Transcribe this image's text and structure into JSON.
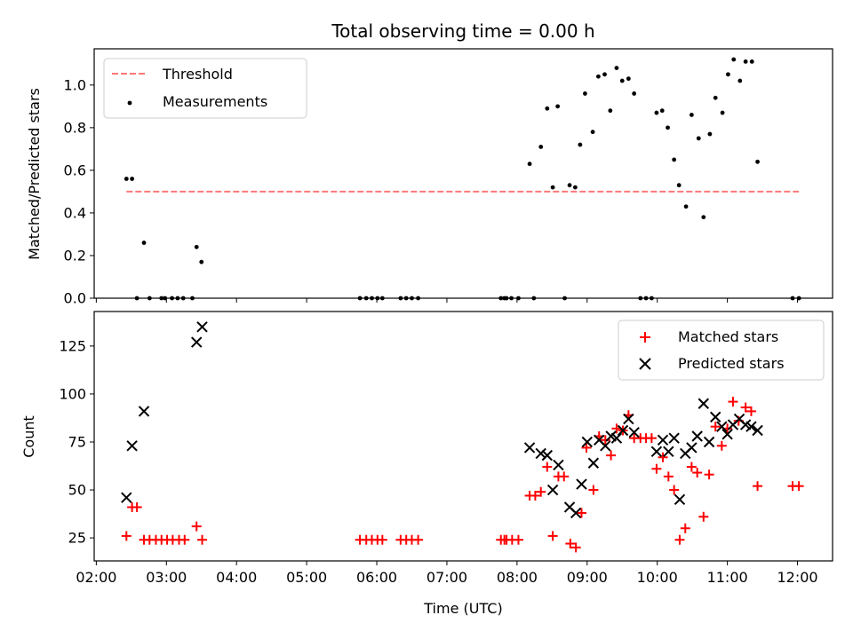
{
  "figure": {
    "title": "Total observing time = 0.00 h",
    "xlabel": "Time (UTC)",
    "x_ticks": [
      "02:00",
      "03:00",
      "04:00",
      "05:00",
      "06:00",
      "07:00",
      "08:00",
      "09:00",
      "10:00",
      "11:00",
      "12:00"
    ]
  },
  "chart_data": [
    {
      "type": "scatter",
      "title": "Total observing time = 0.00 h",
      "xlabel": "",
      "ylabel": "Matched/Predicted stars",
      "x_unit": "hours UTC",
      "xlim": [
        1.97,
        12.5
      ],
      "ylim": [
        0.0,
        1.17
      ],
      "y_ticks": [
        "0.0",
        "0.2",
        "0.4",
        "0.6",
        "0.8",
        "1.0"
      ],
      "legend_position": "upper-left",
      "threshold": {
        "name": "Threshold",
        "value": 0.5,
        "x_range": [
          2.43,
          12.02
        ],
        "color": "#ff7777",
        "style": "dashed"
      },
      "series": [
        {
          "name": "Measurements",
          "marker": "dot",
          "color": "#000000",
          "points": [
            [
              2.43,
              0.56
            ],
            [
              2.51,
              0.56
            ],
            [
              2.58,
              0.0
            ],
            [
              2.68,
              0.26
            ],
            [
              2.76,
              0.0
            ],
            [
              2.93,
              0.0
            ],
            [
              2.98,
              0.0
            ],
            [
              3.08,
              0.0
            ],
            [
              3.16,
              0.0
            ],
            [
              3.24,
              0.0
            ],
            [
              3.37,
              0.0
            ],
            [
              3.43,
              0.24
            ],
            [
              3.5,
              0.17
            ],
            [
              5.76,
              0.0
            ],
            [
              5.85,
              0.0
            ],
            [
              5.93,
              0.0
            ],
            [
              6.01,
              0.0
            ],
            [
              6.08,
              0.0
            ],
            [
              6.34,
              0.0
            ],
            [
              6.42,
              0.0
            ],
            [
              6.5,
              0.0
            ],
            [
              6.59,
              0.0
            ],
            [
              7.77,
              0.0
            ],
            [
              7.82,
              0.0
            ],
            [
              7.85,
              0.0
            ],
            [
              7.92,
              0.0
            ],
            [
              8.02,
              0.0
            ],
            [
              8.18,
              0.63
            ],
            [
              8.24,
              0.0
            ],
            [
              8.34,
              0.71
            ],
            [
              8.43,
              0.89
            ],
            [
              8.51,
              0.52
            ],
            [
              8.58,
              0.9
            ],
            [
              8.68,
              0.0
            ],
            [
              8.75,
              0.53
            ],
            [
              8.83,
              0.52
            ],
            [
              8.9,
              0.72
            ],
            [
              8.97,
              0.96
            ],
            [
              9.08,
              0.78
            ],
            [
              9.16,
              1.04
            ],
            [
              9.25,
              1.05
            ],
            [
              9.33,
              0.88
            ],
            [
              9.42,
              1.08
            ],
            [
              9.5,
              1.02
            ],
            [
              9.59,
              1.03
            ],
            [
              9.67,
              0.96
            ],
            [
              9.76,
              0.0
            ],
            [
              9.84,
              0.0
            ],
            [
              9.92,
              0.0
            ],
            [
              9.99,
              0.87
            ],
            [
              10.07,
              0.88
            ],
            [
              10.15,
              0.8
            ],
            [
              10.24,
              0.65
            ],
            [
              10.31,
              0.53
            ],
            [
              10.41,
              0.43
            ],
            [
              10.49,
              0.86
            ],
            [
              10.59,
              0.75
            ],
            [
              10.66,
              0.38
            ],
            [
              10.75,
              0.77
            ],
            [
              10.83,
              0.94
            ],
            [
              10.93,
              0.87
            ],
            [
              11.01,
              1.05
            ],
            [
              11.09,
              1.12
            ],
            [
              11.18,
              1.02
            ],
            [
              11.26,
              1.11
            ],
            [
              11.35,
              1.11
            ],
            [
              11.43,
              0.64
            ],
            [
              11.93,
              0.0
            ],
            [
              12.02,
              0.0
            ]
          ]
        }
      ]
    },
    {
      "type": "scatter",
      "xlabel": "Time (UTC)",
      "ylabel": "Count",
      "x_unit": "hours UTC",
      "xlim": [
        1.97,
        12.5
      ],
      "ylim": [
        13,
        143
      ],
      "y_ticks": [
        "25",
        "50",
        "75",
        "100",
        "125"
      ],
      "legend_position": "upper-right",
      "series": [
        {
          "name": "Matched stars",
          "marker": "plus",
          "color": "#ff0000",
          "points": [
            [
              2.43,
              26
            ],
            [
              2.51,
              41
            ],
            [
              2.58,
              41
            ],
            [
              2.68,
              24
            ],
            [
              2.76,
              24
            ],
            [
              2.85,
              24
            ],
            [
              2.93,
              24
            ],
            [
              3.01,
              24
            ],
            [
              3.09,
              24
            ],
            [
              3.18,
              24
            ],
            [
              3.26,
              24
            ],
            [
              3.43,
              31
            ],
            [
              3.51,
              24
            ],
            [
              5.76,
              24
            ],
            [
              5.85,
              24
            ],
            [
              5.93,
              24
            ],
            [
              6.01,
              24
            ],
            [
              6.08,
              24
            ],
            [
              6.34,
              24
            ],
            [
              6.42,
              24
            ],
            [
              6.5,
              24
            ],
            [
              6.59,
              24
            ],
            [
              7.77,
              24
            ],
            [
              7.82,
              24
            ],
            [
              7.85,
              24
            ],
            [
              7.93,
              24
            ],
            [
              8.02,
              24
            ],
            [
              8.18,
              47
            ],
            [
              8.26,
              47
            ],
            [
              8.34,
              49
            ],
            [
              8.43,
              62
            ],
            [
              8.51,
              26
            ],
            [
              8.59,
              57
            ],
            [
              8.67,
              57
            ],
            [
              8.76,
              22
            ],
            [
              8.84,
              20
            ],
            [
              8.92,
              38
            ],
            [
              8.99,
              72
            ],
            [
              9.09,
              50
            ],
            [
              9.17,
              78
            ],
            [
              9.26,
              76
            ],
            [
              9.34,
              68
            ],
            [
              9.42,
              82
            ],
            [
              9.51,
              81
            ],
            [
              9.59,
              89
            ],
            [
              9.67,
              77
            ],
            [
              9.76,
              77
            ],
            [
              9.84,
              77
            ],
            [
              9.92,
              77
            ],
            [
              9.99,
              61
            ],
            [
              10.08,
              67
            ],
            [
              10.16,
              57
            ],
            [
              10.24,
              50
            ],
            [
              10.32,
              24
            ],
            [
              10.4,
              30
            ],
            [
              10.49,
              62
            ],
            [
              10.57,
              59
            ],
            [
              10.66,
              36
            ],
            [
              10.74,
              58
            ],
            [
              10.83,
              83
            ],
            [
              10.92,
              73
            ],
            [
              11.0,
              82
            ],
            [
              11.08,
              96
            ],
            [
              11.16,
              86
            ],
            [
              11.26,
              93
            ],
            [
              11.34,
              91
            ],
            [
              11.43,
              52
            ],
            [
              11.93,
              52
            ],
            [
              12.02,
              52
            ]
          ]
        },
        {
          "name": "Predicted stars",
          "marker": "x",
          "color": "#000000",
          "points": [
            [
              2.43,
              46
            ],
            [
              2.51,
              73
            ],
            [
              2.68,
              91
            ],
            [
              3.43,
              127
            ],
            [
              3.51,
              135
            ],
            [
              8.18,
              72
            ],
            [
              8.34,
              69
            ],
            [
              8.43,
              68
            ],
            [
              8.51,
              50
            ],
            [
              8.59,
              63
            ],
            [
              8.75,
              41
            ],
            [
              8.84,
              38
            ],
            [
              8.92,
              53
            ],
            [
              9.0,
              75
            ],
            [
              9.09,
              64
            ],
            [
              9.17,
              76
            ],
            [
              9.26,
              73
            ],
            [
              9.34,
              78
            ],
            [
              9.42,
              77
            ],
            [
              9.51,
              81
            ],
            [
              9.59,
              87
            ],
            [
              9.67,
              80
            ],
            [
              9.99,
              70
            ],
            [
              10.08,
              76
            ],
            [
              10.16,
              70
            ],
            [
              10.24,
              77
            ],
            [
              10.32,
              45
            ],
            [
              10.4,
              69
            ],
            [
              10.49,
              72
            ],
            [
              10.57,
              78
            ],
            [
              10.66,
              95
            ],
            [
              10.74,
              75
            ],
            [
              10.83,
              88
            ],
            [
              10.92,
              83
            ],
            [
              11.0,
              79
            ],
            [
              11.08,
              84
            ],
            [
              11.17,
              87
            ],
            [
              11.26,
              84
            ],
            [
              11.34,
              83
            ],
            [
              11.43,
              81
            ]
          ]
        }
      ]
    }
  ]
}
